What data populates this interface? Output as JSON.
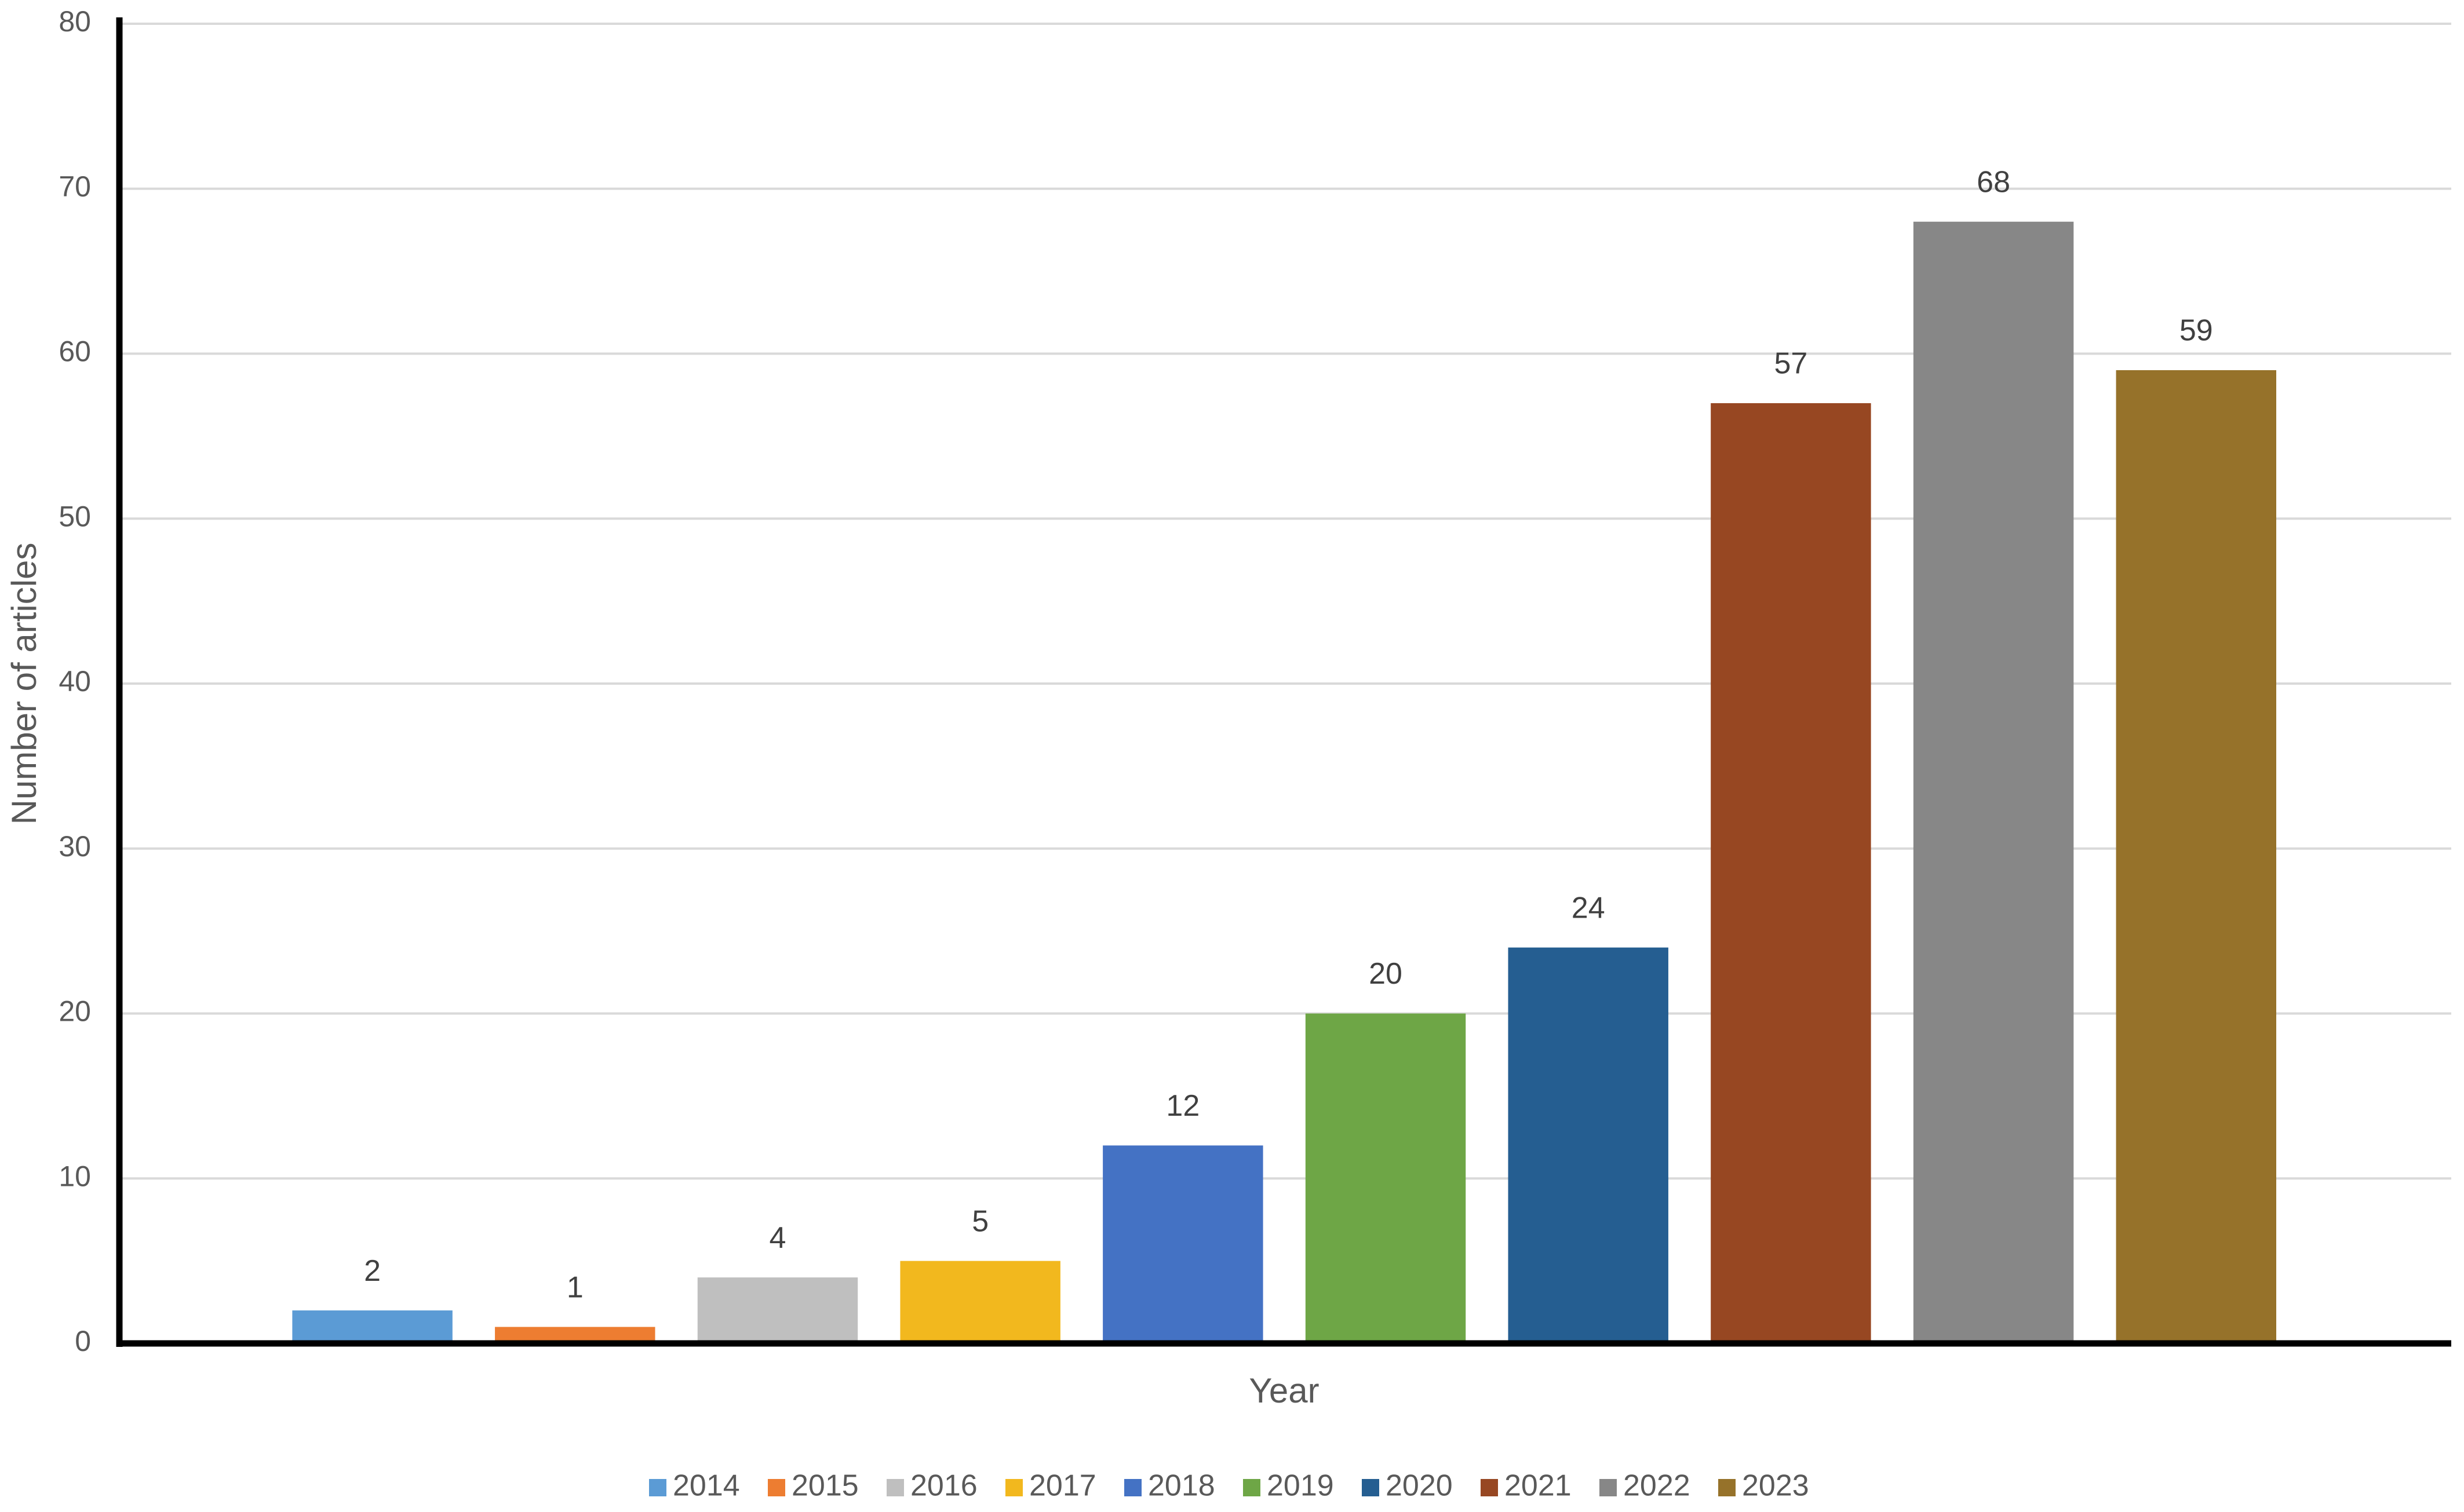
{
  "chart_data": {
    "type": "bar",
    "y_label": "Number of articles",
    "x_label": "Year",
    "categories": [
      null
    ],
    "series": [
      {
        "name": "2014",
        "color": "#5b9bd5",
        "values": [
          2
        ]
      },
      {
        "name": "2015",
        "color": "#ed7d31",
        "values": [
          1
        ]
      },
      {
        "name": "2016",
        "color": "#bfbfbf",
        "values": [
          4
        ]
      },
      {
        "name": "2017",
        "color": "#f2b81e",
        "values": [
          5
        ]
      },
      {
        "name": "2018",
        "color": "#4472c4",
        "values": [
          12
        ]
      },
      {
        "name": "2019",
        "color": "#6ea646",
        "values": [
          20
        ]
      },
      {
        "name": "2020",
        "color": "#255e91",
        "values": [
          24
        ]
      },
      {
        "name": "2021",
        "color": "#974722",
        "values": [
          57
        ]
      },
      {
        "name": "2022",
        "color": "#878787",
        "values": [
          68
        ]
      },
      {
        "name": "2023",
        "color": "#96722a",
        "values": [
          59
        ]
      }
    ],
    "ylim": [
      0,
      80
    ],
    "yticks": [
      0,
      10,
      20,
      30,
      40,
      50,
      60,
      70,
      80
    ],
    "grid": true,
    "legend": "bottom"
  }
}
